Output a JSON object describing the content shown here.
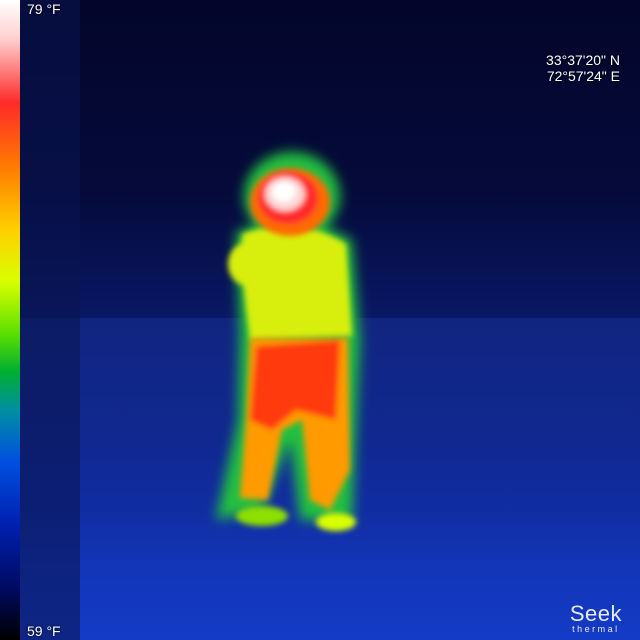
{
  "scale": {
    "max_label": "79 °F",
    "min_label": "59 °F",
    "palette": [
      "#ffffff",
      "#ff2a2a",
      "#ff7a00",
      "#ffd000",
      "#5ee000",
      "#00b030",
      "#0050e0",
      "#000a60",
      "#000000"
    ]
  },
  "gps": {
    "latitude": "33°37'20\" N",
    "longitude": "72°57'24\" E"
  },
  "brand": {
    "name": "Seek",
    "sub": "thermal"
  },
  "scene": {
    "subject": "person",
    "colors": {
      "hot": "#ffffff",
      "warm": "#ff2a2a",
      "mid": "#ffd000",
      "cool": "#5ee000",
      "background": "#05072a"
    }
  }
}
